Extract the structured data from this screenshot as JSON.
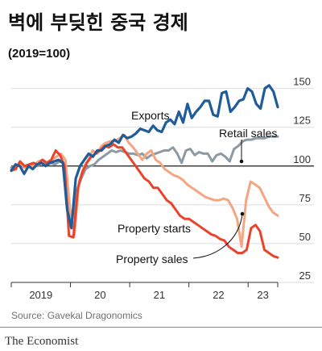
{
  "title": "벽에 부딪힌 중국 경제",
  "subtitle": "(2019=100)",
  "source": "Source: Gavekal Dragonomics",
  "brand": "The Economist",
  "chart_data": {
    "type": "line",
    "title": "벽에 부딪힌 중국 경제",
    "subtitle": "(2019=100)",
    "y_ticks": [
      25,
      50,
      75,
      100,
      125,
      150
    ],
    "ylim": [
      25,
      155
    ],
    "x_labels": [
      "2019",
      "20",
      "21",
      "22",
      "23"
    ],
    "x_start": "2019-01",
    "x_end": "2023-06",
    "reference_line": 100,
    "series": [
      {
        "name": "Exports",
        "color": "#1f5c99",
        "values": [
          97,
          101,
          100,
          95,
          100,
          98,
          101,
          102,
          100,
          102,
          103,
          104,
          102,
          72,
          60,
          92,
          100,
          104,
          108,
          106,
          110,
          110,
          113,
          114,
          117,
          115,
          120,
          118,
          119,
          121,
          124,
          123,
          122,
          126,
          123,
          122,
          128,
          130,
          127,
          135,
          128,
          140,
          131,
          135,
          138,
          142,
          142,
          133,
          132,
          147,
          148,
          135,
          138,
          142,
          143,
          150,
          148,
          140,
          137,
          150,
          152,
          148,
          138
        ]
      },
      {
        "name": "Retail sales",
        "color": "#8c9aa3",
        "values": [
          99,
          100,
          101,
          99,
          100,
          101,
          100,
          102,
          101,
          102,
          101,
          103,
          102,
          70,
          66,
          84,
          92,
          98,
          100,
          101,
          104,
          106,
          108,
          110,
          109,
          110,
          109,
          108,
          108,
          107,
          108,
          105,
          107,
          108,
          109,
          110,
          110,
          112,
          108,
          102,
          110,
          111,
          107,
          109,
          108,
          108,
          103,
          107,
          108,
          106,
          103,
          111,
          113,
          116,
          117,
          117,
          118,
          118,
          118,
          119,
          119,
          119
        ]
      },
      {
        "name": "Property starts",
        "color": "#f4a582",
        "values": [
          98,
          99,
          102,
          99,
          101,
          100,
          103,
          104,
          102,
          104,
          106,
          108,
          104,
          73,
          56,
          90,
          99,
          104,
          110,
          108,
          113,
          115,
          116,
          116,
          118,
          120,
          115,
          112,
          108,
          104,
          108,
          110,
          104,
          102,
          98,
          96,
          94,
          93,
          91,
          88,
          86,
          84,
          82,
          80,
          79,
          78,
          78,
          79,
          78,
          73,
          66,
          48,
          78,
          90,
          88,
          86,
          80,
          74,
          70,
          68
        ]
      },
      {
        "name": "Property sales",
        "color": "#e8442c",
        "values": [
          97,
          98,
          103,
          100,
          101,
          102,
          101,
          104,
          102,
          104,
          110,
          107,
          100,
          55,
          54,
          86,
          96,
          102,
          106,
          108,
          110,
          113,
          112,
          114,
          112,
          112,
          108,
          104,
          100,
          96,
          92,
          90,
          86,
          86,
          82,
          78,
          76,
          72,
          68,
          66,
          66,
          64,
          62,
          60,
          58,
          56,
          55,
          53,
          52,
          48,
          46,
          44,
          44,
          46,
          60,
          62,
          58,
          46,
          44,
          42,
          41
        ]
      }
    ]
  }
}
